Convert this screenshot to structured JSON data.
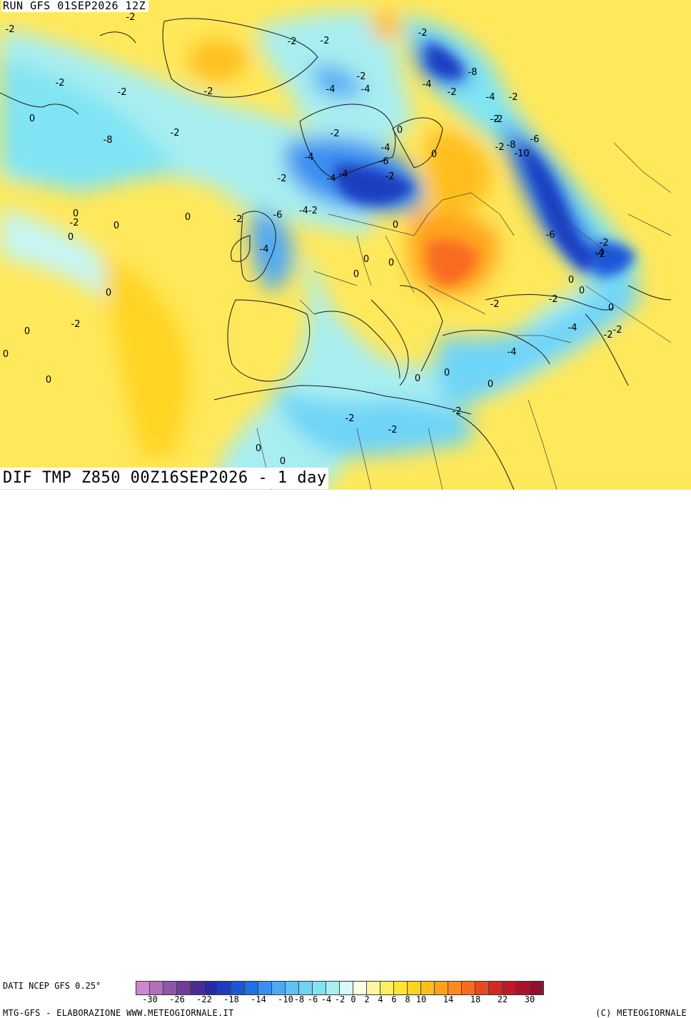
{
  "header": {
    "run": "RUN GFS 01SEP2026 12Z"
  },
  "title": "DIF TMP Z850 00Z16SEP2026 - 1 day",
  "source": "DATI NCEP GFS 0.25°",
  "footer": {
    "left": "MTG-GFS - ELABORAZIONE WWW.METEOGIORNALE.IT",
    "right": "(C) METEOGIORNALE"
  },
  "colorbar": {
    "ticks": [
      "-30",
      "-26",
      "-22",
      "-18",
      "-14",
      "-10",
      "-8",
      "-6",
      "-4",
      "-2",
      "0",
      "2",
      "4",
      "6",
      "8",
      "10",
      "14",
      "18",
      "22",
      "30"
    ],
    "colors": [
      "#cc88cc",
      "#b070b8",
      "#9055a8",
      "#703c98",
      "#4c2c90",
      "#2a2aa0",
      "#1e3cc0",
      "#1a56d8",
      "#2070e8",
      "#3a8ef0",
      "#50a8f5",
      "#60c0f8",
      "#6ed4f8",
      "#80e4f4",
      "#a8f0f0",
      "#d6fafa",
      "#fffce0",
      "#fff7a0",
      "#fff060",
      "#ffe436",
      "#ffd420",
      "#ffbe1a",
      "#ffa21a",
      "#ff8a20",
      "#f86c20",
      "#e84a20",
      "#d42a20",
      "#c01a2a",
      "#a8142e",
      "#901030"
    ]
  },
  "map_labels": [
    "-2",
    "-2",
    "0",
    "-2",
    "-2",
    "-2",
    "0",
    "-2",
    "-2",
    "-8",
    "-2",
    "-2",
    "-4",
    "-4",
    "-2",
    "-2",
    "-4",
    "-4",
    "-2",
    "-2",
    "-2",
    "0",
    "0",
    "-2",
    "-8",
    "-10",
    "-6",
    "-2",
    "-4",
    "-4",
    "-6",
    "-8",
    "-2",
    "-4",
    "-4",
    "-6",
    "-2",
    "-6",
    "-4-2",
    "-2",
    "0",
    "0",
    "-4",
    "0",
    "-2",
    "-2",
    "0",
    "0",
    "0",
    "0",
    "-2",
    "-4",
    "-2",
    "-2",
    "0",
    "0",
    "0",
    "-2",
    "-2",
    "-4",
    "-4",
    "0",
    "0",
    "0",
    "-2",
    "-2",
    "-2",
    "0",
    "0",
    "-2",
    "0",
    "0",
    "0",
    "0"
  ]
}
